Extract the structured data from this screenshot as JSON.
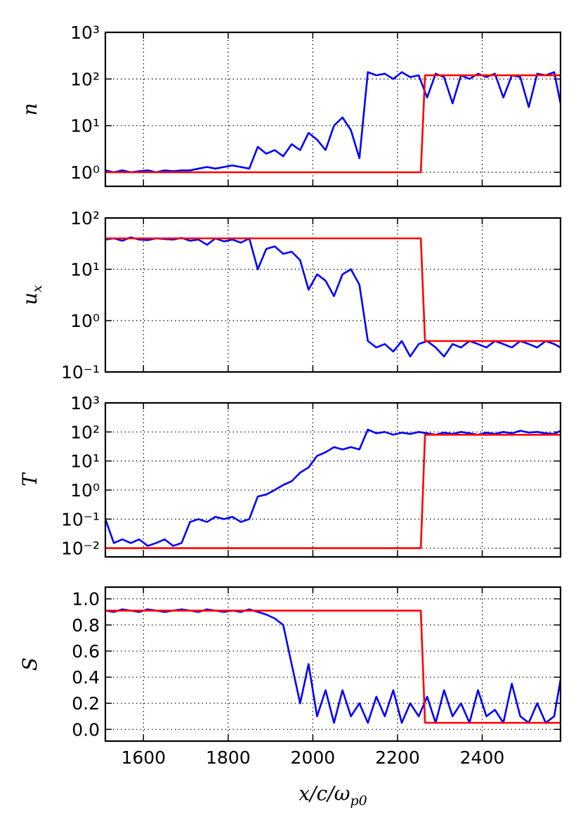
{
  "chart_data": [
    {
      "type": "line",
      "ylabel": [
        "n"
      ],
      "log": true,
      "grid": true,
      "xlim": [
        1510,
        2585
      ],
      "xticks": [
        1600,
        1800,
        2000,
        2200,
        2400
      ],
      "ylim": [
        0.5,
        1000
      ],
      "yticks": [
        {
          "value": 1,
          "label": "10⁰"
        },
        {
          "value": 10,
          "label": "10¹"
        },
        {
          "value": 100,
          "label": "10²"
        },
        {
          "value": 1000,
          "label": "10³"
        }
      ],
      "series": [
        {
          "color": "#0000ff",
          "x": [
            1510,
            1530,
            1550,
            1570,
            1590,
            1610,
            1630,
            1650,
            1670,
            1690,
            1710,
            1730,
            1750,
            1770,
            1790,
            1810,
            1830,
            1850,
            1870,
            1890,
            1910,
            1930,
            1950,
            1970,
            1990,
            2010,
            2030,
            2050,
            2070,
            2090,
            2110,
            2130,
            2150,
            2170,
            2190,
            2210,
            2230,
            2250,
            2270,
            2290,
            2310,
            2330,
            2350,
            2370,
            2390,
            2410,
            2430,
            2450,
            2470,
            2490,
            2510,
            2530,
            2550,
            2570,
            2585
          ],
          "values": [
            1.1,
            1.0,
            1.1,
            1.0,
            1.05,
            1.1,
            1.0,
            1.1,
            1.05,
            1.1,
            1.1,
            1.2,
            1.3,
            1.2,
            1.3,
            1.4,
            1.3,
            1.2,
            3.5,
            2.5,
            3,
            2.2,
            4,
            3,
            7,
            5,
            3,
            10,
            15,
            8,
            2,
            140,
            120,
            130,
            100,
            140,
            110,
            120,
            40,
            130,
            110,
            30,
            120,
            100,
            130,
            110,
            130,
            40,
            120,
            110,
            25,
            130,
            120,
            140,
            30
          ]
        },
        {
          "color": "#ff0000",
          "x": [
            1510,
            2255,
            2265,
            2585
          ],
          "values": [
            1,
            1,
            120,
            120
          ]
        }
      ]
    },
    {
      "type": "line",
      "ylabel": [
        "u",
        "x"
      ],
      "log": true,
      "grid": true,
      "xlim": [
        1510,
        2585
      ],
      "xticks": [
        1600,
        1800,
        2000,
        2200,
        2400
      ],
      "ylim": [
        0.1,
        100
      ],
      "yticks": [
        {
          "value": 0.1,
          "label": "10⁻¹"
        },
        {
          "value": 1,
          "label": "10⁰"
        },
        {
          "value": 10,
          "label": "10¹"
        },
        {
          "value": 100,
          "label": "10²"
        }
      ],
      "series": [
        {
          "color": "#0000ff",
          "x": [
            1510,
            1530,
            1550,
            1570,
            1590,
            1610,
            1630,
            1650,
            1670,
            1690,
            1710,
            1730,
            1750,
            1770,
            1790,
            1810,
            1830,
            1850,
            1870,
            1890,
            1910,
            1930,
            1950,
            1970,
            1990,
            2010,
            2030,
            2050,
            2070,
            2090,
            2110,
            2130,
            2150,
            2170,
            2190,
            2210,
            2230,
            2250,
            2270,
            2290,
            2310,
            2330,
            2350,
            2370,
            2390,
            2410,
            2430,
            2450,
            2470,
            2490,
            2510,
            2530,
            2550,
            2570,
            2585
          ],
          "values": [
            38,
            40,
            36,
            42,
            38,
            37,
            40,
            39,
            38,
            41,
            36,
            38,
            30,
            40,
            35,
            38,
            33,
            40,
            10,
            25,
            28,
            20,
            22,
            15,
            4,
            8,
            6,
            3,
            8,
            10,
            5,
            0.4,
            0.3,
            0.35,
            0.25,
            0.4,
            0.2,
            0.35,
            0.4,
            0.3,
            0.2,
            0.35,
            0.3,
            0.4,
            0.35,
            0.3,
            0.4,
            0.35,
            0.3,
            0.4,
            0.35,
            0.3,
            0.4,
            0.35,
            0.3
          ]
        },
        {
          "color": "#ff0000",
          "x": [
            1510,
            2255,
            2265,
            2585
          ],
          "values": [
            40,
            40,
            0.4,
            0.4
          ]
        }
      ]
    },
    {
      "type": "line",
      "ylabel": [
        "T"
      ],
      "log": true,
      "grid": true,
      "xlim": [
        1510,
        2585
      ],
      "xticks": [
        1600,
        1800,
        2000,
        2200,
        2400
      ],
      "ylim": [
        0.005,
        1000
      ],
      "yticks": [
        {
          "value": 0.01,
          "label": "10⁻²"
        },
        {
          "value": 0.1,
          "label": "10⁻¹"
        },
        {
          "value": 1,
          "label": "10⁰"
        },
        {
          "value": 10,
          "label": "10¹"
        },
        {
          "value": 100,
          "label": "10²"
        },
        {
          "value": 1000,
          "label": "10³"
        }
      ],
      "series": [
        {
          "color": "#0000ff",
          "x": [
            1510,
            1530,
            1550,
            1570,
            1590,
            1610,
            1630,
            1650,
            1670,
            1690,
            1710,
            1730,
            1750,
            1770,
            1790,
            1810,
            1830,
            1850,
            1870,
            1890,
            1910,
            1930,
            1950,
            1970,
            1990,
            2010,
            2030,
            2050,
            2070,
            2090,
            2110,
            2130,
            2150,
            2170,
            2190,
            2210,
            2230,
            2250,
            2270,
            2290,
            2310,
            2330,
            2350,
            2370,
            2390,
            2410,
            2430,
            2450,
            2470,
            2490,
            2510,
            2530,
            2550,
            2570,
            2585
          ],
          "values": [
            0.1,
            0.015,
            0.02,
            0.015,
            0.02,
            0.012,
            0.015,
            0.02,
            0.012,
            0.015,
            0.08,
            0.1,
            0.08,
            0.12,
            0.1,
            0.12,
            0.08,
            0.1,
            0.6,
            0.7,
            1.0,
            1.5,
            2,
            4,
            6,
            15,
            20,
            30,
            25,
            30,
            25,
            120,
            90,
            100,
            80,
            95,
            85,
            100,
            90,
            80,
            95,
            85,
            100,
            90,
            80,
            95,
            85,
            100,
            90,
            110,
            95,
            100,
            90,
            85,
            110
          ]
        },
        {
          "color": "#ff0000",
          "x": [
            1510,
            2255,
            2265,
            2585
          ],
          "values": [
            0.01,
            0.01,
            80,
            80
          ]
        }
      ]
    },
    {
      "type": "line",
      "ylabel": [
        "S"
      ],
      "log": false,
      "grid": true,
      "xlim": [
        1510,
        2585
      ],
      "xticks": [
        1600,
        1800,
        2000,
        2200,
        2400
      ],
      "xlabel": [
        "x/c/ω",
        "p0"
      ],
      "ylim": [
        -0.09,
        1.09
      ],
      "yticks": [
        {
          "value": 0,
          "label": "0.0"
        },
        {
          "value": 0.2,
          "label": "0.2"
        },
        {
          "value": 0.4,
          "label": "0.4"
        },
        {
          "value": 0.6,
          "label": "0.6"
        },
        {
          "value": 0.8,
          "label": "0.8"
        },
        {
          "value": 1,
          "label": "1.0"
        }
      ],
      "series": [
        {
          "color": "#0000ff",
          "x": [
            1510,
            1530,
            1550,
            1570,
            1590,
            1610,
            1630,
            1650,
            1670,
            1690,
            1710,
            1730,
            1750,
            1770,
            1790,
            1810,
            1830,
            1850,
            1870,
            1890,
            1910,
            1930,
            1950,
            1970,
            1990,
            2010,
            2030,
            2050,
            2070,
            2090,
            2110,
            2130,
            2150,
            2170,
            2190,
            2210,
            2230,
            2250,
            2270,
            2290,
            2310,
            2330,
            2350,
            2370,
            2390,
            2410,
            2430,
            2450,
            2470,
            2490,
            2510,
            2530,
            2550,
            2570,
            2585
          ],
          "values": [
            0.91,
            0.9,
            0.92,
            0.91,
            0.9,
            0.92,
            0.91,
            0.9,
            0.91,
            0.92,
            0.91,
            0.9,
            0.92,
            0.91,
            0.9,
            0.91,
            0.9,
            0.92,
            0.9,
            0.88,
            0.85,
            0.8,
            0.5,
            0.2,
            0.5,
            0.1,
            0.3,
            0.05,
            0.3,
            0.1,
            0.2,
            0.05,
            0.25,
            0.1,
            0.3,
            0.05,
            0.2,
            0.1,
            0.25,
            0.05,
            0.3,
            0.1,
            0.2,
            0.05,
            0.3,
            0.1,
            0.15,
            0.05,
            0.35,
            0.1,
            0.05,
            0.2,
            0.05,
            0.1,
            0.38
          ]
        },
        {
          "color": "#ff0000",
          "x": [
            1510,
            2255,
            2265,
            2585
          ],
          "values": [
            0.91,
            0.91,
            0.05,
            0.05
          ]
        }
      ]
    }
  ]
}
